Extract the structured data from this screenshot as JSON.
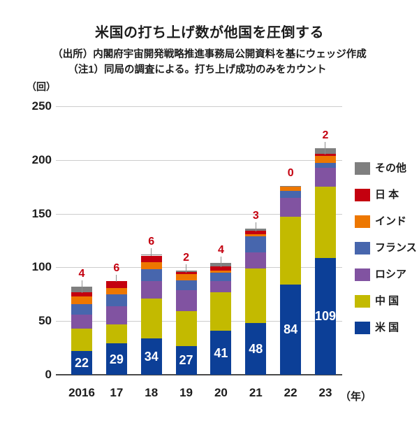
{
  "title": "米国の打ち上げ数が他国を圧倒する",
  "source_note": "（出所）内閣府宇宙開発戦略推進事務局公開資料を基にウェッジ作成",
  "method_note": "（注1）同局の調査による。打ち上げ成功のみをカウント",
  "unit_label": "（回）",
  "year_axis_label": "（年）",
  "chart_data": {
    "type": "bar",
    "stacked": true,
    "title": "米国の打ち上げ数が他国を圧倒する",
    "xlabel": "年",
    "ylabel": "回",
    "ylim": [
      0,
      250
    ],
    "yticks": [
      0,
      50,
      100,
      150,
      200,
      250
    ],
    "grid": true,
    "legend_position": "right",
    "categories": [
      "2016",
      "17",
      "18",
      "19",
      "20",
      "21",
      "22",
      "23"
    ],
    "series": [
      {
        "name": "米国",
        "color": "#0c3f97",
        "values": [
          22,
          29,
          34,
          27,
          41,
          48,
          84,
          109
        ],
        "inside_labels": true,
        "label_color": "#ffffff"
      },
      {
        "name": "中国",
        "color": "#c3ba00",
        "values": [
          21,
          18,
          37,
          32,
          36,
          51,
          63,
          66
        ]
      },
      {
        "name": "ロシア",
        "color": "#8153a1",
        "values": [
          13,
          17,
          16,
          20,
          10,
          15,
          18,
          18
        ]
      },
      {
        "name": "フランス",
        "color": "#4766ad",
        "values": [
          10,
          11,
          11,
          9,
          8,
          15,
          6,
          4
        ]
      },
      {
        "name": "インド",
        "color": "#ed7700",
        "values": [
          7,
          6,
          7,
          6,
          2,
          2,
          4,
          7
        ]
      },
      {
        "name": "日本",
        "color": "#c4000f",
        "values": [
          4,
          6,
          6,
          2,
          4,
          3,
          0,
          2
        ],
        "top_labels": true,
        "label_color": "#c4000f"
      },
      {
        "name": "その他",
        "color": "#7f7f7f",
        "values": [
          5,
          0,
          1,
          1,
          3,
          2,
          1,
          5
        ]
      }
    ],
    "top_label_values": [
      4,
      6,
      6,
      2,
      4,
      3,
      0,
      2
    ],
    "inside_label_values": [
      22,
      29,
      34,
      27,
      41,
      48,
      84,
      109
    ],
    "legend_order_top_to_bottom": [
      "その他",
      "日本",
      "インド",
      "フランス",
      "ロシア",
      "中国",
      "米国"
    ],
    "legend_labels": {
      "その他": "その他",
      "日本": "日 本",
      "インド": "インド",
      "フランス": "フランス",
      "ロシア": "ロシア",
      "中国": "中 国",
      "米国": "米 国"
    }
  }
}
